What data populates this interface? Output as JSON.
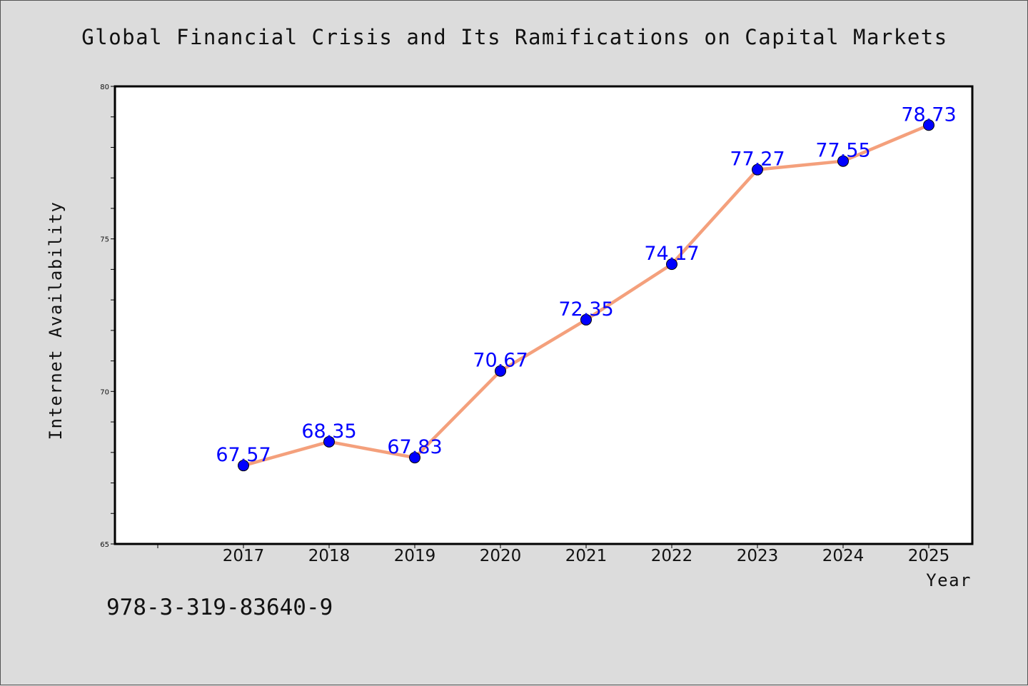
{
  "chart_data": {
    "type": "line",
    "title": "Global Financial Crisis and Its Ramifications on Capital Markets",
    "xlabel": "Year",
    "ylabel": "Internet Availability",
    "categories": [
      "2017",
      "2018",
      "2019",
      "2020",
      "2021",
      "2022",
      "2023",
      "2024",
      "2025"
    ],
    "series": [
      {
        "values": [
          67.57,
          68.35,
          67.83,
          70.67,
          72.35,
          74.17,
          77.27,
          77.55,
          78.73
        ],
        "labels": [
          "67.57",
          "68.35",
          "67.83",
          "70.67",
          "72.35",
          "74.17",
          "77.27",
          "77.55",
          "78.73"
        ]
      }
    ],
    "ylim": [
      65,
      80
    ],
    "yticks": [
      "65",
      "70",
      "75",
      "80"
    ],
    "grid": false,
    "legend": "none",
    "colors": {
      "line": "#f4a07c",
      "marker": "#0000ff",
      "label": "#0000ff",
      "background": "#dcdcdc",
      "plot_area": "#ffffff"
    }
  },
  "footer": {
    "code": "978-3-319-83640-9"
  }
}
